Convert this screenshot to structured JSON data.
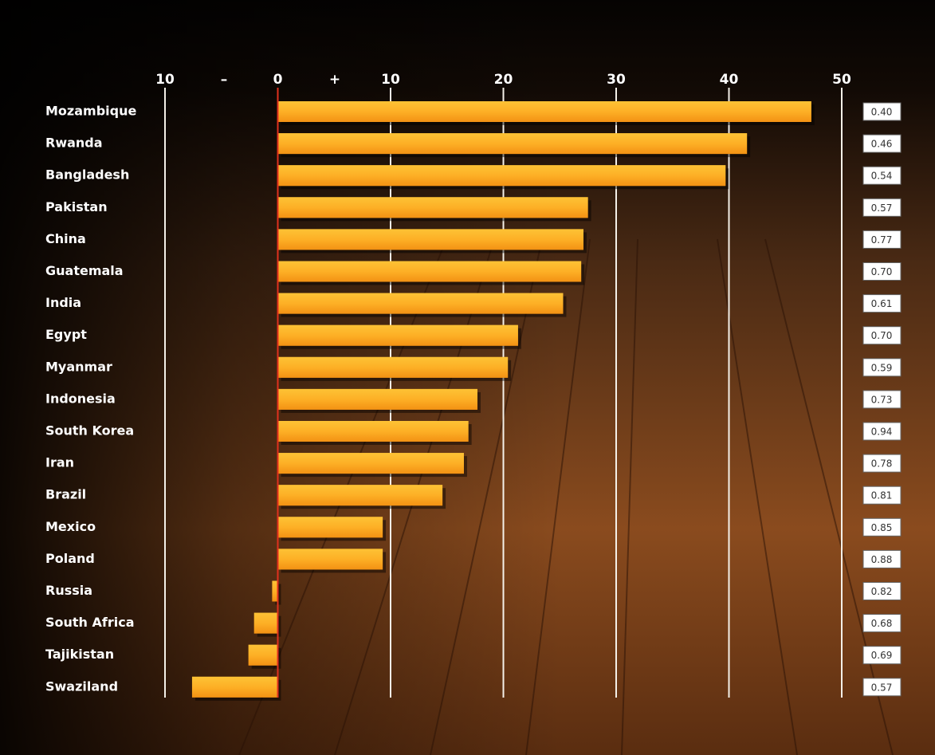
{
  "chart_data": {
    "type": "bar",
    "horizontal": true,
    "annotations": [
      "–",
      "+"
    ],
    "categories": [
      "Mozambique",
      "Rwanda",
      "Bangladesh",
      "Pakistan",
      "China",
      "Guatemala",
      "India",
      "Egypt",
      "Myanmar",
      "Indonesia",
      "South Korea",
      "Iran",
      "Brazil",
      "Mexico",
      "Poland",
      "Russia",
      "South Africa",
      "Tajikistan",
      "Swaziland"
    ],
    "values": [
      47.3,
      41.6,
      39.7,
      27.5,
      27.1,
      26.9,
      25.3,
      21.3,
      20.4,
      17.7,
      16.9,
      16.5,
      14.6,
      9.3,
      9.3,
      -0.5,
      -2.1,
      -2.6,
      -7.6
    ],
    "color": "#f9a31c",
    "side_values": [
      0.4,
      0.46,
      0.54,
      0.57,
      0.77,
      0.7,
      0.61,
      0.7,
      0.59,
      0.73,
      0.94,
      0.78,
      0.81,
      0.85,
      0.88,
      0.82,
      0.68,
      0.69,
      0.57
    ],
    "side_value_labels": [
      "0.40",
      "0.46",
      "0.54",
      "0.57",
      "0.77",
      "0.70",
      "0.61",
      "0.70",
      "0.59",
      "0.73",
      "0.94",
      "0.78",
      "0.81",
      "0.85",
      "0.88",
      "0.82",
      "0.68",
      "0.69",
      "0.57"
    ],
    "xlim": [
      -10,
      50
    ],
    "xticks": [
      {
        "value": -10,
        "label": "10"
      },
      0,
      10,
      20,
      30,
      40,
      50
    ],
    "grid": true
  }
}
